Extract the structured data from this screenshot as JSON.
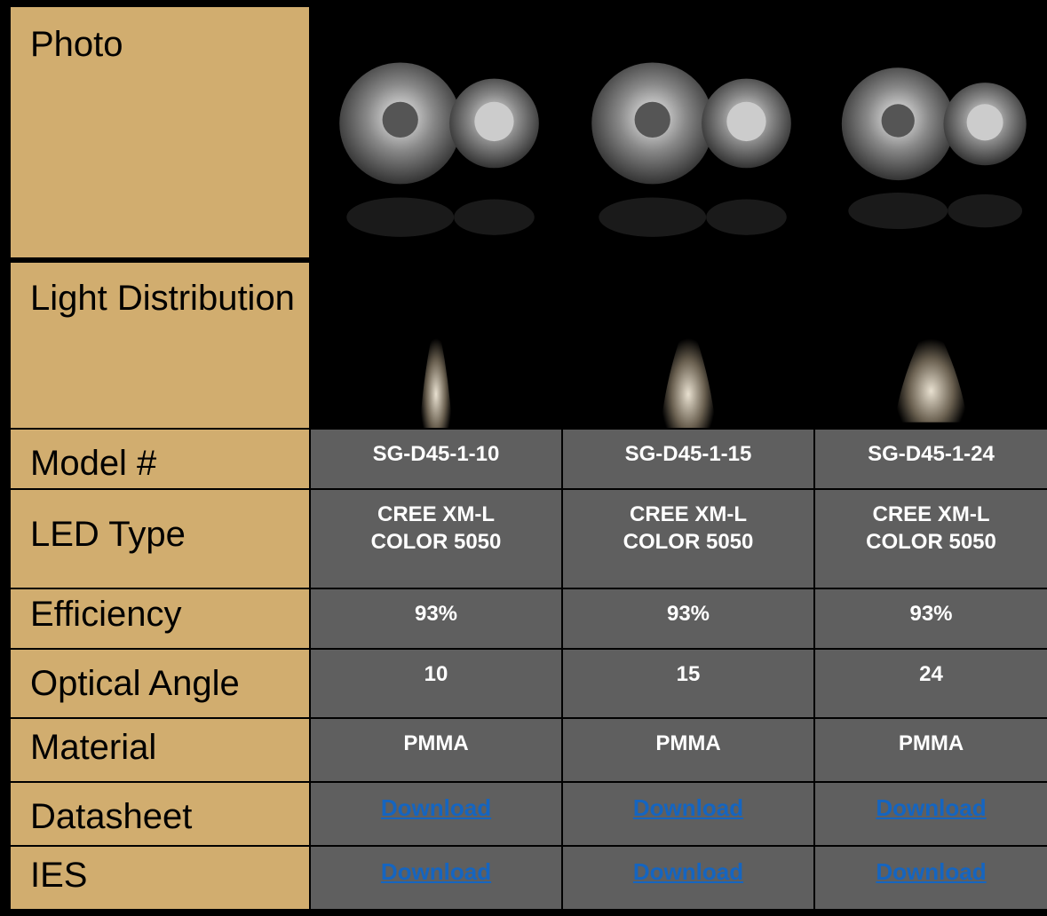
{
  "table": {
    "rows": [
      {
        "label": "Photo"
      },
      {
        "label": "Light Distribution"
      },
      {
        "label": "Model #",
        "cells": [
          "SG-D45-1-10",
          "SG-D45-1-15",
          "SG-D45-1-24"
        ]
      },
      {
        "label": "LED Type",
        "cells": [
          "CREE XM-L\nCOLOR 5050",
          "CREE XM-L\nCOLOR 5050",
          "CREE XM-L\nCOLOR 5050"
        ]
      },
      {
        "label": "Efficiency",
        "cells": [
          "93%",
          "93%",
          "93%"
        ]
      },
      {
        "label": "Optical Angle",
        "cells": [
          "10",
          "15",
          "24"
        ]
      },
      {
        "label": "Material",
        "cells": [
          "PMMA",
          "PMMA",
          "PMMA"
        ]
      },
      {
        "label": "Datasheet",
        "cells": [
          "Download",
          "Download",
          "Download"
        ]
      },
      {
        "label": "IES",
        "cells": [
          "Download",
          "Download",
          "Download"
        ]
      }
    ]
  }
}
